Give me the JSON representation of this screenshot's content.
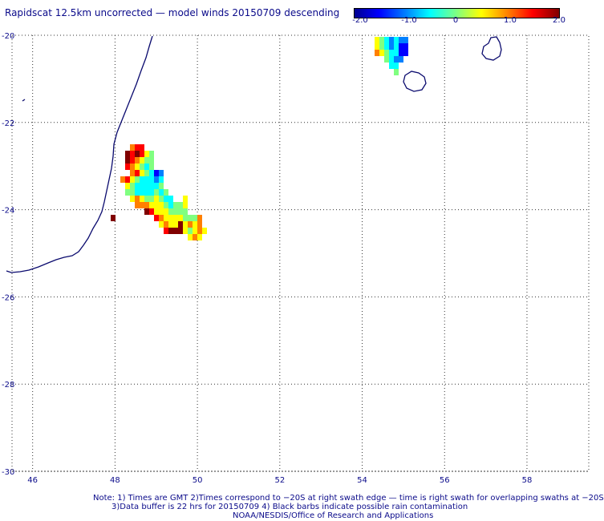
{
  "header": {
    "title": "Rapidscat 12.5km uncorrected — model winds 20150709 descending"
  },
  "colorbar": {
    "labels": [
      "-2.0",
      "-1.0",
      "0",
      "1.0",
      "2.0"
    ],
    "values": [
      -2.0,
      -1.0,
      0,
      1.0,
      2.0
    ],
    "range": [
      -2.0,
      2.0
    ],
    "colors": [
      "#00008f",
      "#0000ff",
      "#0080ff",
      "#00ffff",
      "#80ff80",
      "#ffff00",
      "#ff8000",
      "#ff0000",
      "#800000"
    ]
  },
  "map": {
    "lon_range": [
      45.5,
      59.5
    ],
    "lat_range": [
      -30,
      -20
    ],
    "lon_ticks": [
      "46",
      "48",
      "50",
      "52",
      "54",
      "56",
      "58"
    ],
    "lon_tick_values": [
      46,
      48,
      50,
      52,
      54,
      56,
      58
    ],
    "lat_ticks": [
      "-20",
      "-22",
      "-24",
      "-26",
      "-28",
      "-30"
    ],
    "lat_tick_values": [
      -20,
      -22,
      -24,
      -26,
      -28,
      -30
    ],
    "grid": "dotted",
    "coast_color": "#0a0a6e"
  },
  "notes": {
    "line1": "Note: 1) Times are GMT 2)Times correspond to −20S at right swath edge — time is right swath for overlapping swaths at −20S",
    "line2": "3)Data buffer is 22 hrs for 20150709 4) Black barbs indicate possible rain contamination",
    "line3": "NOAA/NESDIS/Office of Research and Applications"
  }
}
